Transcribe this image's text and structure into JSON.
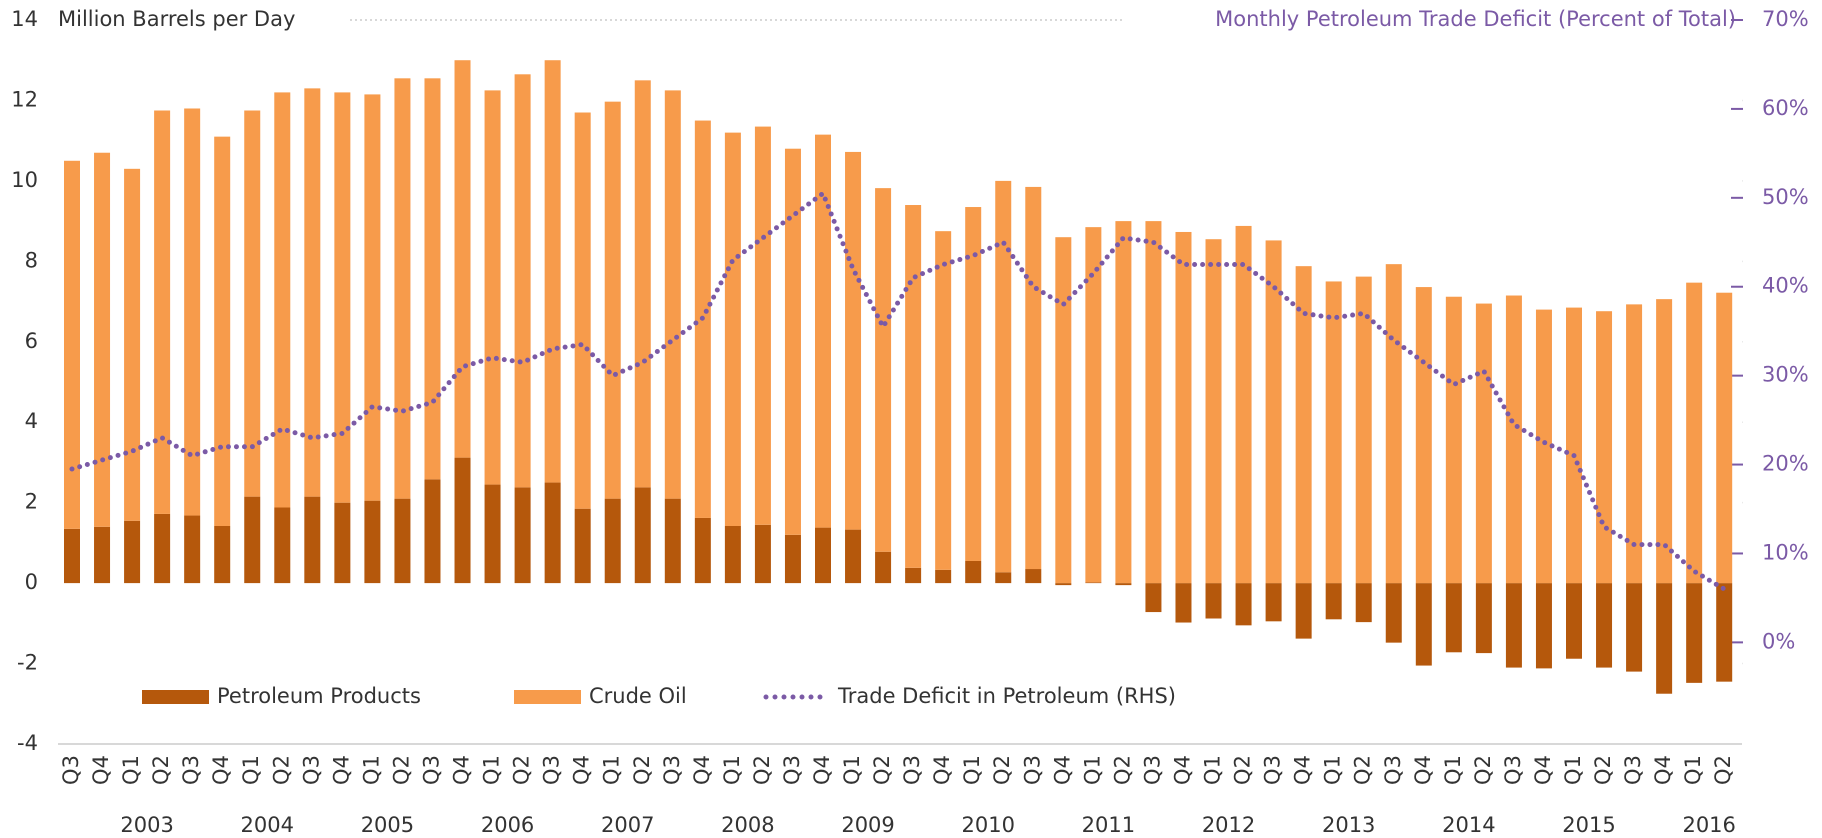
{
  "chart_data": {
    "type": "bar",
    "y_label": "Million Barrels per Day",
    "y2_label": "Monthly Petroleum Trade Deficit (Percent of Total)",
    "categories": [
      "Q3",
      "Q4",
      "Q1",
      "Q2",
      "Q3",
      "Q4",
      "Q1",
      "Q2",
      "Q3",
      "Q4",
      "Q1",
      "Q2",
      "Q3",
      "Q4",
      "Q1",
      "Q2",
      "Q3",
      "Q4",
      "Q1",
      "Q2",
      "Q3",
      "Q4",
      "Q1",
      "Q2",
      "Q3",
      "Q4",
      "Q1",
      "Q2",
      "Q3",
      "Q4",
      "Q1",
      "Q2",
      "Q3",
      "Q4",
      "Q1",
      "Q2",
      "Q3",
      "Q4",
      "Q1",
      "Q2",
      "Q3",
      "Q4",
      "Q1",
      "Q2",
      "Q3",
      "Q4",
      "Q1",
      "Q2",
      "Q3",
      "Q4",
      "Q1",
      "Q2",
      "Q3",
      "Q4",
      "Q1",
      "Q2"
    ],
    "year_labels": [
      "2003",
      "2004",
      "2005",
      "2006",
      "2007",
      "2008",
      "2009",
      "2010",
      "2011",
      "2012",
      "2013",
      "2014",
      "2015",
      "2016"
    ],
    "series": [
      {
        "name": "Petroleum Products",
        "color": "#b5580c",
        "values": [
          1.35,
          1.4,
          1.55,
          1.72,
          1.68,
          1.42,
          2.15,
          1.88,
          2.15,
          2.0,
          2.05,
          2.1,
          2.58,
          3.12,
          2.45,
          2.38,
          2.5,
          1.85,
          2.1,
          2.38,
          2.1,
          1.62,
          1.42,
          1.45,
          1.2,
          1.38,
          1.33,
          0.78,
          0.38,
          0.33,
          0.55,
          0.27,
          0.35,
          -0.05,
          0.02,
          -0.05,
          -0.72,
          -0.98,
          -0.88,
          -1.05,
          -0.95,
          -1.38,
          -0.9,
          -0.97,
          -1.48,
          -2.05,
          -1.72,
          -1.74,
          -2.1,
          -2.12,
          -1.88,
          -2.1,
          -2.2,
          -2.75,
          -2.48,
          -2.45
        ]
      },
      {
        "name": "Crude Oil",
        "color": "#f79b4b",
        "values": [
          9.15,
          9.3,
          8.75,
          10.03,
          10.12,
          9.68,
          9.6,
          10.32,
          10.15,
          10.2,
          10.1,
          10.45,
          9.97,
          9.88,
          9.8,
          10.27,
          10.5,
          9.85,
          9.87,
          10.12,
          10.15,
          9.88,
          9.78,
          9.9,
          9.6,
          9.77,
          9.39,
          9.04,
          9.02,
          8.42,
          8.8,
          9.73,
          9.5,
          8.6,
          8.83,
          9.0,
          9.0,
          8.73,
          8.55,
          8.88,
          8.52,
          7.88,
          7.5,
          7.62,
          7.93,
          7.36,
          7.12,
          6.95,
          7.15,
          6.8,
          6.85,
          6.76,
          6.93,
          7.06,
          7.47,
          7.22
        ]
      },
      {
        "name": "Trade Deficit in Petroleum (RHS)",
        "color": "#7b5aa6",
        "type": "line",
        "axis": "y2",
        "values": [
          19.5,
          20.5,
          21.5,
          23,
          21,
          22,
          22,
          24,
          23,
          23.5,
          26.5,
          26,
          27,
          31,
          32,
          31.5,
          33,
          33.5,
          30,
          31.5,
          34,
          36.5,
          43,
          45.5,
          48,
          50.5,
          42,
          35.5,
          41,
          42.5,
          43.5,
          45,
          40,
          38,
          41.5,
          45.5,
          45,
          42.5,
          42.5,
          42.5,
          40,
          37,
          36.5,
          37,
          34,
          31.5,
          29,
          30.5,
          24.5,
          22.5,
          21,
          13,
          11,
          11,
          8,
          6
        ]
      }
    ],
    "ylim": [
      -4,
      14
    ],
    "yticks": [
      -4,
      -2,
      0,
      2,
      4,
      6,
      8,
      10,
      12,
      14
    ],
    "y2lim": [
      -11.43,
      70
    ],
    "y2ticks": [
      {
        "value": 0,
        "label": "0%"
      },
      {
        "value": 10,
        "label": "10%"
      },
      {
        "value": 20,
        "label": "20%"
      },
      {
        "value": 30,
        "label": "30%"
      },
      {
        "value": 40,
        "label": "40%"
      },
      {
        "value": 50,
        "label": "50%"
      },
      {
        "value": 60,
        "label": "60%"
      },
      {
        "value": 70,
        "label": "70%"
      }
    ],
    "grid": true
  }
}
